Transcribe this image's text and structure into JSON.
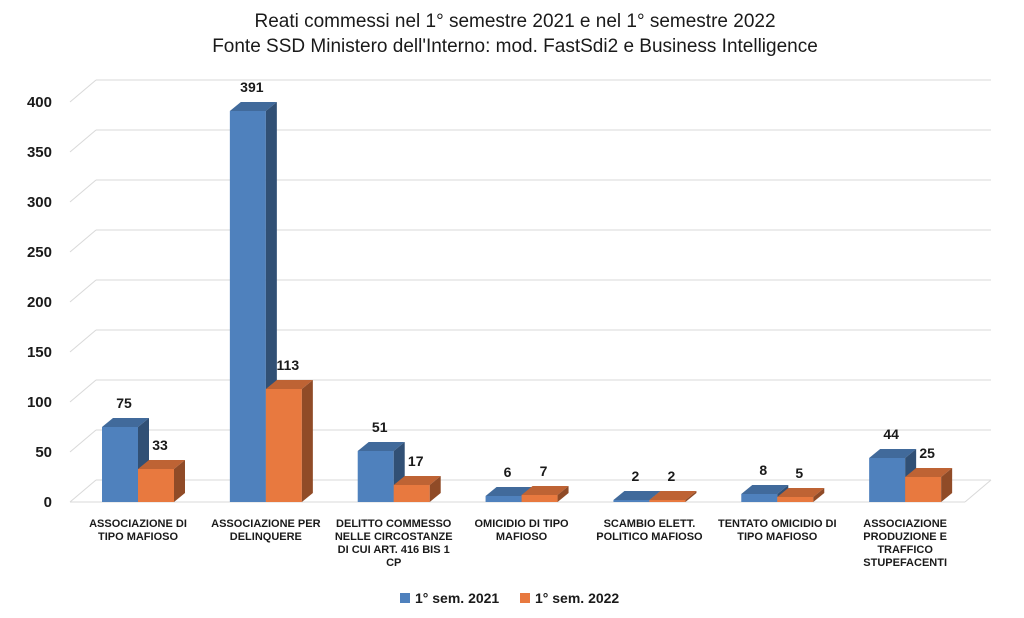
{
  "chart_data": {
    "type": "bar",
    "title": "Reati commessi nel 1° semestre 2021 e nel 1° semestre 2022",
    "subtitle": "Fonte SSD Ministero dell'Interno: mod. FastSdi2 e Business Intelligence",
    "categories": [
      [
        "ASSOCIAZIONE DI",
        "TIPO MAFIOSO"
      ],
      [
        "ASSOCIAZIONE PER",
        "DELINQUERE"
      ],
      [
        "DELITTO COMMESSO",
        "NELLE CIRCOSTANZE",
        "DI CUI ART. 416 BIS 1",
        "CP"
      ],
      [
        "OMICIDIO DI TIPO",
        "MAFIOSO"
      ],
      [
        "SCAMBIO ELETT.",
        "POLITICO MAFIOSO"
      ],
      [
        "TENTATO OMICIDIO DI",
        "TIPO MAFIOSO"
      ],
      [
        "ASSOCIAZIONE",
        "PRODUZIONE E",
        "TRAFFICO",
        "STUPEFACENTI"
      ]
    ],
    "series": [
      {
        "name": "1° sem. 2021",
        "color": "#4F81BD",
        "values": [
          75,
          391,
          51,
          6,
          2,
          8,
          44
        ]
      },
      {
        "name": "1° sem. 2022",
        "color": "#E8793F",
        "values": [
          33,
          113,
          17,
          7,
          2,
          5,
          25
        ]
      }
    ],
    "yticks": [
      "0",
      "50",
      "100",
      "150",
      "200",
      "250",
      "300",
      "350",
      "400"
    ],
    "ylim": [
      0,
      400
    ],
    "grid": true,
    "legend_position": "bottom",
    "style": "3d-clustered-column"
  }
}
